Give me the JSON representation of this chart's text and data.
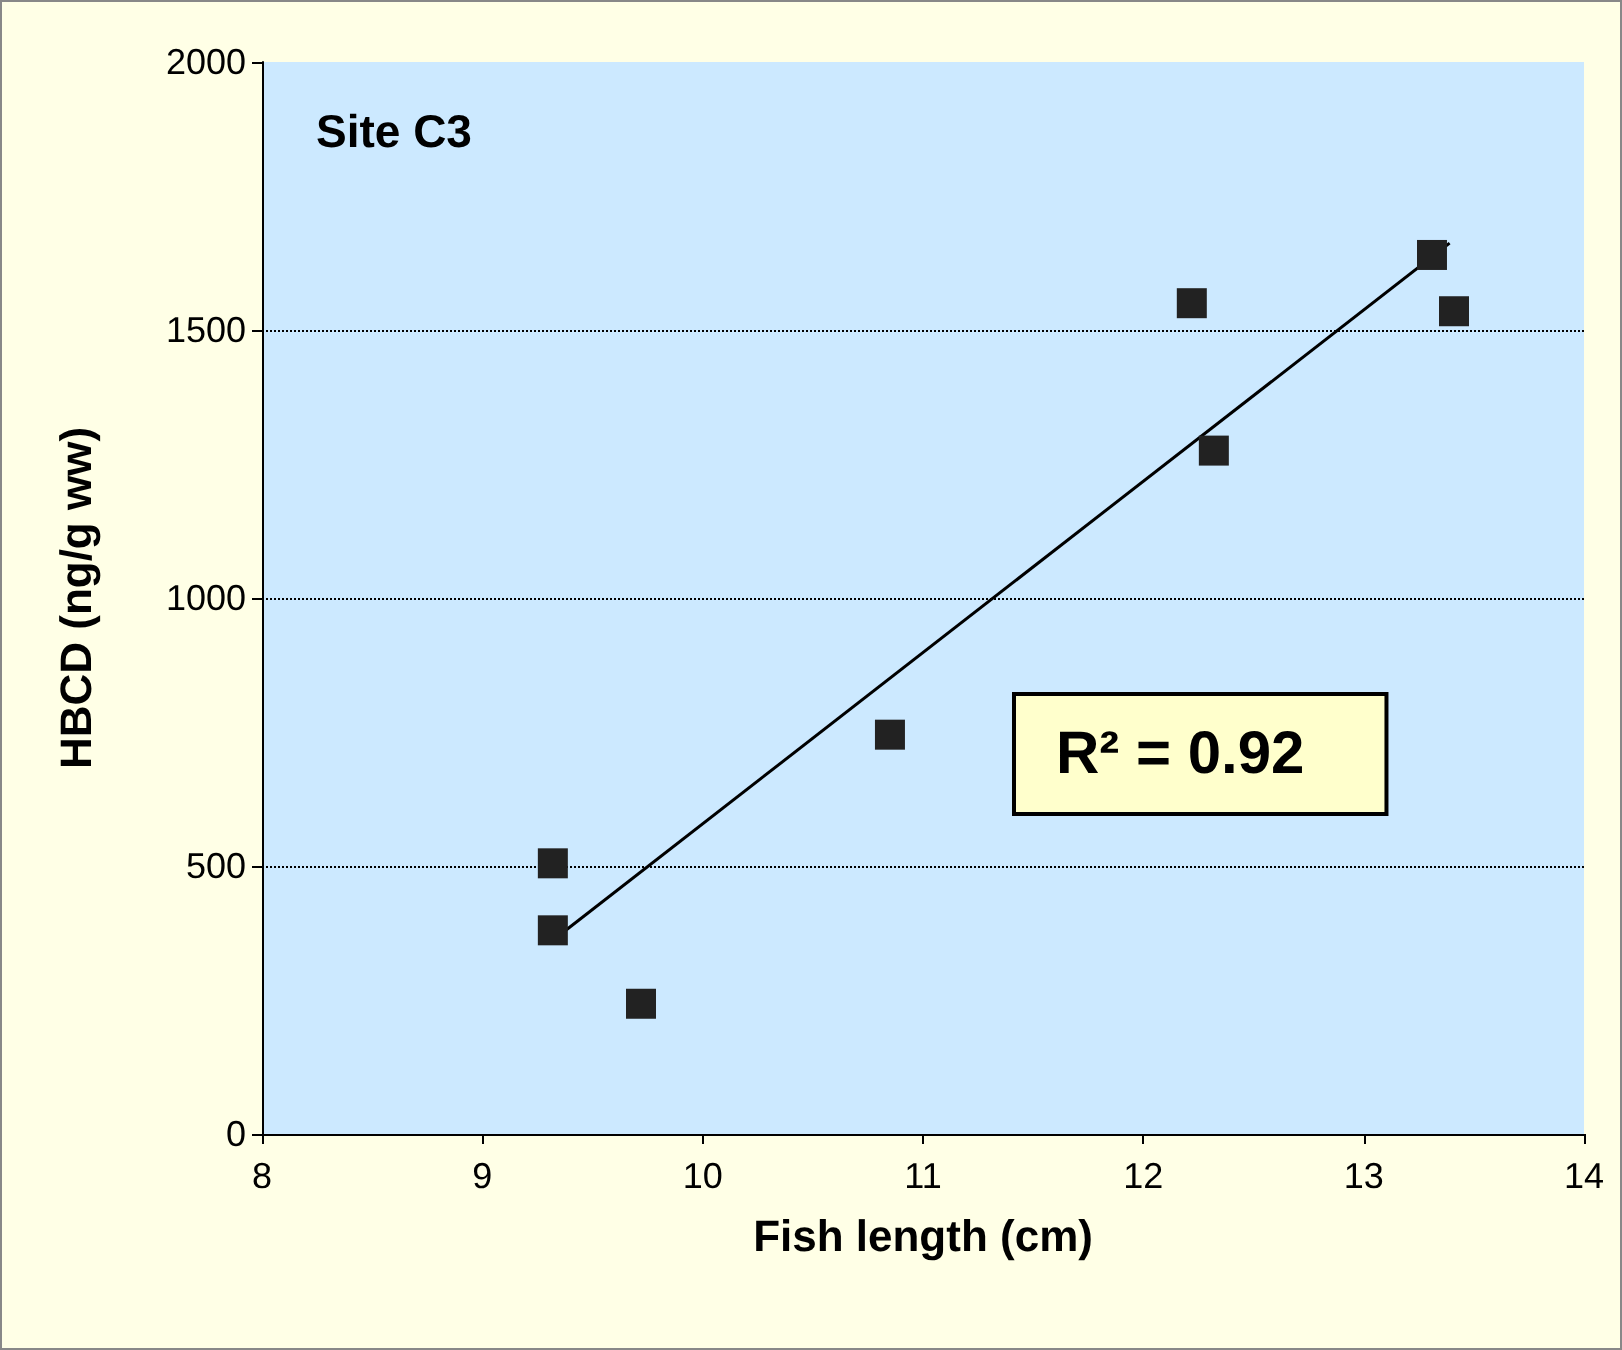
{
  "chart_data": {
    "type": "scatter",
    "title": "Site C3",
    "xlabel": "Fish length (cm)",
    "ylabel": "HBCD (ng/g ww)",
    "annotations": [
      "R² = 0.92"
    ],
    "series": [
      {
        "color": "#222222",
        "marker": "square",
        "x": [
          9.32,
          9.32,
          9.72,
          10.85,
          12.22,
          12.32,
          13.31,
          13.41
        ],
        "values": [
          505,
          380,
          243,
          745,
          1550,
          1275,
          1640,
          1535
        ]
      },
      {
        "type": "line",
        "color": "#000000",
        "marker": "none",
        "line_style": "solid",
        "x": [
          9.3,
          13.39
        ],
        "values": [
          355,
          1662
        ]
      }
    ],
    "xlim": [
      8,
      14
    ],
    "xticks": [
      8,
      9,
      10,
      11,
      12,
      13,
      14
    ],
    "ylim": [
      0,
      2000
    ],
    "yticks": [
      0,
      500,
      1000,
      1500,
      2000
    ],
    "grid": "y"
  }
}
